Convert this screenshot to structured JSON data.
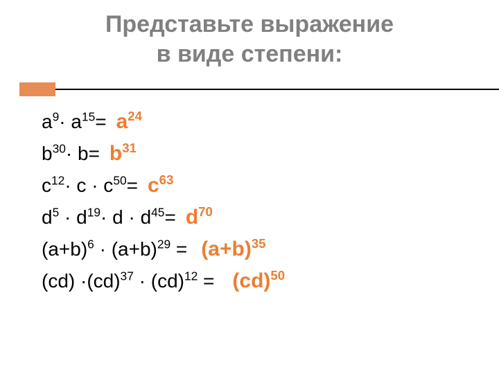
{
  "title": {
    "line1": "Представьте выражение",
    "line2": "в виде степени:",
    "color": "#808080",
    "fontsize": 34
  },
  "accent_bar": {
    "color": "#e78c55",
    "width": 52,
    "height": 20
  },
  "expressions": [
    {
      "lhs": {
        "parts": [
          {
            "t": "a"
          },
          {
            "sup": "9"
          },
          {
            "t": "· a"
          },
          {
            "sup": "15"
          },
          {
            "t": "="
          }
        ]
      },
      "answer": {
        "base": "a",
        "exp": "24"
      }
    },
    {
      "lhs": {
        "parts": [
          {
            "t": "b"
          },
          {
            "sup": "30"
          },
          {
            "t": "· b="
          }
        ]
      },
      "answer": {
        "base": "b",
        "exp": "31"
      }
    },
    {
      "lhs": {
        "parts": [
          {
            "t": "c"
          },
          {
            "sup": "12"
          },
          {
            "t": "· c · c"
          },
          {
            "sup": "50"
          },
          {
            "t": "="
          }
        ]
      },
      "answer": {
        "base": "c",
        "exp": "63"
      }
    },
    {
      "lhs": {
        "parts": [
          {
            "t": "d"
          },
          {
            "sup": "5"
          },
          {
            "t": " · d"
          },
          {
            "sup": "19"
          },
          {
            "t": "· d · d"
          },
          {
            "sup": "45"
          },
          {
            "t": "="
          }
        ]
      },
      "answer": {
        "base": "d",
        "exp": "70"
      }
    },
    {
      "lhs": {
        "parts": [
          {
            "t": "(a+b)"
          },
          {
            "sup": "6"
          },
          {
            "t": " · (a+b)"
          },
          {
            "sup": "29"
          },
          {
            "t": " ="
          }
        ]
      },
      "answer": {
        "base": "(a+b)",
        "exp": "35"
      }
    },
    {
      "lhs": {
        "parts": [
          {
            "t": "(cd) ·(cd)"
          },
          {
            "sup": "37"
          },
          {
            "t": " · (cd)"
          },
          {
            "sup": "12"
          },
          {
            "t": " ="
          }
        ]
      },
      "answer": {
        "base": "(cd)",
        "exp": "50"
      }
    }
  ],
  "answer_color": "#ed7d31",
  "text_color": "#000000",
  "expr_fontsize": 28,
  "answer_fontsize": 30
}
